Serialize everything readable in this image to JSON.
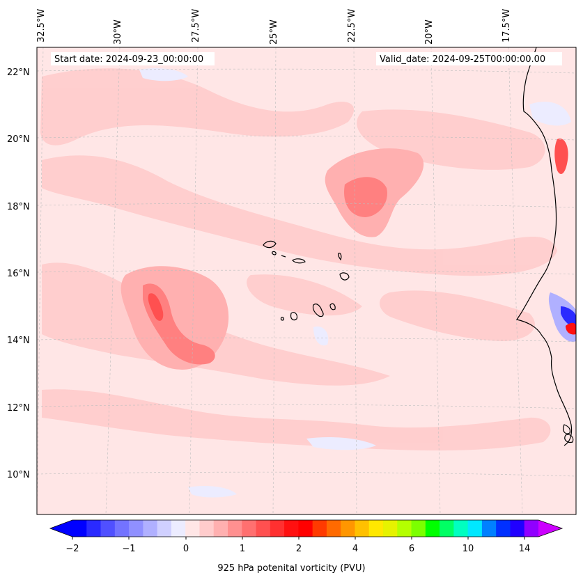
{
  "map": {
    "start_date": "Start date: 2024-09-23_00:00:00",
    "valid_date": "Valid_date: 2024-09-25T00:00:00.00",
    "longitude_labels": [
      "32.5°W",
      "30°W",
      "27.5°W",
      "25°W",
      "22.5°W",
      "20°W",
      "17.5°W"
    ],
    "latitude_labels": [
      "22°N",
      "20°N",
      "18°N",
      "16°N",
      "14°N",
      "12°N",
      "10°N"
    ],
    "background_color": "#ffe6e6",
    "coastline_color": "#000000"
  },
  "colorbar": {
    "label": "925 hPa potenital vorticity (PVU)",
    "ticks": [
      "−2",
      "−1",
      "0",
      "1",
      "2",
      "4",
      "6",
      "10",
      "14"
    ],
    "colors": [
      "#0000ff",
      "#2a2aff",
      "#5050ff",
      "#7373ff",
      "#9090ff",
      "#b0b0ff",
      "#d0d0ff",
      "#ececff",
      "#ffe6e6",
      "#ffcccc",
      "#ffb0b0",
      "#ff9090",
      "#ff7070",
      "#ff5050",
      "#ff3030",
      "#ff1010",
      "#ff0000",
      "#ff3a00",
      "#ff6a00",
      "#ff9600",
      "#ffc000",
      "#ffe800",
      "#e6f200",
      "#b4ff00",
      "#7cff00",
      "#00ff00",
      "#00ff64",
      "#00ffc0",
      "#00e8ff",
      "#0080ff",
      "#0030ff",
      "#2000ff",
      "#9000ff"
    ],
    "extend_low_color": "#0000ff",
    "extend_high_color": "#cc00ff"
  }
}
